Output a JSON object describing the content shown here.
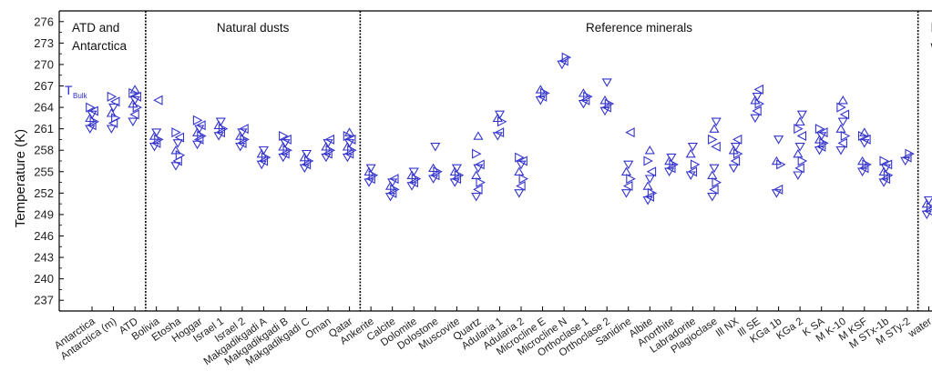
{
  "chart_data": {
    "type": "scatter",
    "title": "",
    "ylabel": "Temperature (K)",
    "xlabel": "",
    "ylim": [
      235.5,
      277.5
    ],
    "yticks": [
      237,
      240,
      243,
      246,
      249,
      252,
      255,
      258,
      261,
      264,
      267,
      270,
      273,
      276
    ],
    "marker": "triangle",
    "marker_color": "#3333cc",
    "grid": false,
    "annotation": {
      "main": "T",
      "sub": "Bulk",
      "near_category": "Antarctica",
      "y": 266.2
    },
    "groups": [
      {
        "name_lines": [
          "ATD and",
          "Antarctica"
        ],
        "categories": [
          "Antarctica",
          "Antarctica (m)",
          "ATD"
        ]
      },
      {
        "name_lines": [
          "Natural dusts"
        ],
        "categories": [
          "Bolivia",
          "Etosha",
          "Hoggar",
          "Israel 1",
          "Israel 2",
          "Makgadikgadi A",
          "Makgadikgadi B",
          "Makgadikgadi C",
          "Oman",
          "Qatar"
        ]
      },
      {
        "name_lines": [
          "Reference minerals"
        ],
        "categories": [
          "Ankerite",
          "Calcite",
          "Dolomite",
          "Dolostone",
          "Muscovite",
          "Quartz",
          "Adularia 1",
          "Adularia 2",
          "Microcline E",
          "Microcline N",
          "Orthoclase 1",
          "Orthoclase 2",
          "Sanidine",
          "Albite",
          "Anorthite",
          "Labradorite",
          "Plagioclase",
          "Ill NX",
          "Ill SE",
          "KGa 1b",
          "KGa 2",
          "K SA",
          "M K-10",
          "M KSF",
          "M STx-1b",
          "M STy-2"
        ]
      },
      {
        "name_lines": [
          "Pure",
          "water"
        ],
        "categories": [
          "water"
        ]
      }
    ],
    "categories": [
      "Antarctica",
      "Antarctica (m)",
      "ATD",
      "Bolivia",
      "Etosha",
      "Hoggar",
      "Israel 1",
      "Israel 2",
      "Makgadikgadi A",
      "Makgadikgadi B",
      "Makgadikgadi C",
      "Oman",
      "Qatar",
      "Ankerite",
      "Calcite",
      "Dolomite",
      "Dolostone",
      "Muscovite",
      "Quartz",
      "Adularia 1",
      "Adularia 2",
      "Microcline E",
      "Microcline N",
      "Orthoclase 1",
      "Orthoclase 2",
      "Sanidine",
      "Albite",
      "Anorthite",
      "Labradorite",
      "Plagioclase",
      "Ill NX",
      "Ill SE",
      "KGa 1b",
      "KGa 2",
      "K SA",
      "M K-10",
      "M KSF",
      "M STx-1b",
      "M STy-2",
      "water"
    ],
    "points": [
      {
        "category": "Antarctica",
        "values": [
          261.0,
          261.5,
          262.0,
          262.5,
          263.0,
          263.5,
          264.0
        ]
      },
      {
        "category": "Antarctica (m)",
        "values": [
          261.0,
          261.8,
          262.5,
          263.2,
          264.0,
          264.8,
          265.5
        ]
      },
      {
        "category": "ATD",
        "values": [
          262.0,
          263.0,
          264.0,
          264.5,
          265.0,
          265.5,
          266.0,
          266.5
        ]
      },
      {
        "category": "Bolivia",
        "values": [
          258.5,
          259.0,
          259.5,
          260.0,
          260.5,
          265.0
        ]
      },
      {
        "category": "Etosha",
        "values": [
          255.8,
          256.5,
          257.3,
          258.0,
          259.0,
          259.8,
          260.5
        ]
      },
      {
        "category": "Hoggar",
        "values": [
          258.8,
          259.5,
          260.0,
          260.5,
          261.0,
          261.5,
          262.2
        ]
      },
      {
        "category": "Israel 1",
        "values": [
          260.0,
          260.5,
          261.0,
          261.5,
          262.0
        ]
      },
      {
        "category": "Israel 2",
        "values": [
          258.5,
          259.0,
          259.5,
          260.0,
          260.5,
          261.0
        ]
      },
      {
        "category": "Makgadikgadi A",
        "values": [
          256.0,
          256.5,
          257.0,
          257.5,
          258.0
        ]
      },
      {
        "category": "Makgadikgadi B",
        "values": [
          257.0,
          257.5,
          258.0,
          258.5,
          259.0,
          259.5,
          260.0
        ]
      },
      {
        "category": "Makgadikgadi C",
        "values": [
          255.5,
          256.0,
          256.5,
          257.0,
          257.5
        ]
      },
      {
        "category": "Oman",
        "values": [
          257.0,
          257.5,
          258.0,
          258.5,
          259.0,
          259.5
        ]
      },
      {
        "category": "Qatar",
        "values": [
          257.0,
          257.5,
          258.0,
          258.5,
          259.0,
          259.5,
          260.0,
          260.5
        ]
      },
      {
        "category": "Ankerite",
        "values": [
          253.5,
          254.0,
          254.5,
          255.0,
          255.5
        ]
      },
      {
        "category": "Calcite",
        "values": [
          251.5,
          252.0,
          252.5,
          253.0,
          253.5,
          254.0
        ]
      },
      {
        "category": "Dolomite",
        "values": [
          253.0,
          253.5,
          254.0,
          254.5,
          255.0
        ]
      },
      {
        "category": "Dolostone",
        "values": [
          254.0,
          254.5,
          255.0,
          255.5,
          258.5
        ]
      },
      {
        "category": "Muscovite",
        "values": [
          253.5,
          254.0,
          254.5,
          255.0,
          255.5
        ]
      },
      {
        "category": "Quartz",
        "values": [
          251.5,
          252.5,
          253.5,
          254.5,
          255.5,
          256.0,
          257.5,
          260.0
        ]
      },
      {
        "category": "Adularia 1",
        "values": [
          260.0,
          260.5,
          262.0,
          262.5,
          263.0
        ]
      },
      {
        "category": "Adularia 2",
        "values": [
          252.0,
          253.0,
          254.0,
          255.0,
          256.0,
          256.5,
          257.0
        ]
      },
      {
        "category": "Microcline E",
        "values": [
          265.0,
          265.5,
          266.0,
          266.5
        ]
      },
      {
        "category": "Microcline N",
        "values": [
          270.0,
          270.5,
          271.0
        ]
      },
      {
        "category": "Orthoclase 1",
        "values": [
          264.5,
          265.0,
          265.5,
          266.0
        ]
      },
      {
        "category": "Orthoclase 2",
        "values": [
          263.5,
          264.0,
          264.5,
          265.0,
          267.5
        ]
      },
      {
        "category": "Sanidine",
        "values": [
          252.0,
          253.0,
          254.0,
          255.0,
          256.0,
          260.5
        ]
      },
      {
        "category": "Albite",
        "values": [
          251.0,
          251.5,
          252.0,
          253.0,
          254.0,
          255.0,
          256.5,
          258.0
        ]
      },
      {
        "category": "Anorthite",
        "values": [
          255.0,
          255.5,
          256.0,
          256.5,
          257.0
        ]
      },
      {
        "category": "Labradorite",
        "values": [
          254.5,
          255.0,
          256.0,
          257.5,
          258.5
        ]
      },
      {
        "category": "Plagioclase",
        "values": [
          251.5,
          252.5,
          253.5,
          254.5,
          255.5,
          258.5,
          259.5,
          261.0,
          262.0
        ]
      },
      {
        "category": "Ill NX",
        "values": [
          255.5,
          256.5,
          257.5,
          258.0,
          258.5,
          259.5
        ]
      },
      {
        "category": "Ill SE",
        "values": [
          262.5,
          263.5,
          264.5,
          265.0,
          265.5,
          266.5
        ]
      },
      {
        "category": "KGa 1b",
        "values": [
          252.0,
          252.5,
          256.0,
          256.5,
          259.5
        ]
      },
      {
        "category": "KGa 2",
        "values": [
          254.5,
          255.5,
          256.5,
          257.5,
          258.5,
          260.0,
          261.0,
          262.0,
          263.0
        ]
      },
      {
        "category": "K SA",
        "values": [
          258.0,
          258.5,
          259.0,
          259.5,
          260.0,
          260.5,
          261.0
        ]
      },
      {
        "category": "M K-10",
        "values": [
          258.0,
          259.0,
          260.0,
          261.0,
          262.0,
          263.0,
          264.0,
          265.0
        ]
      },
      {
        "category": "M KSF",
        "values": [
          255.0,
          255.5,
          256.0,
          256.5,
          259.0,
          259.5,
          260.0,
          260.5
        ]
      },
      {
        "category": "M STx-1b",
        "values": [
          253.5,
          254.0,
          254.5,
          255.0,
          255.5,
          256.0,
          256.5
        ]
      },
      {
        "category": "M STy-2",
        "values": [
          256.5,
          257.0,
          257.5
        ]
      },
      {
        "category": "water",
        "values": [
          249.0,
          249.5,
          250.0,
          250.5,
          251.0
        ]
      }
    ]
  }
}
